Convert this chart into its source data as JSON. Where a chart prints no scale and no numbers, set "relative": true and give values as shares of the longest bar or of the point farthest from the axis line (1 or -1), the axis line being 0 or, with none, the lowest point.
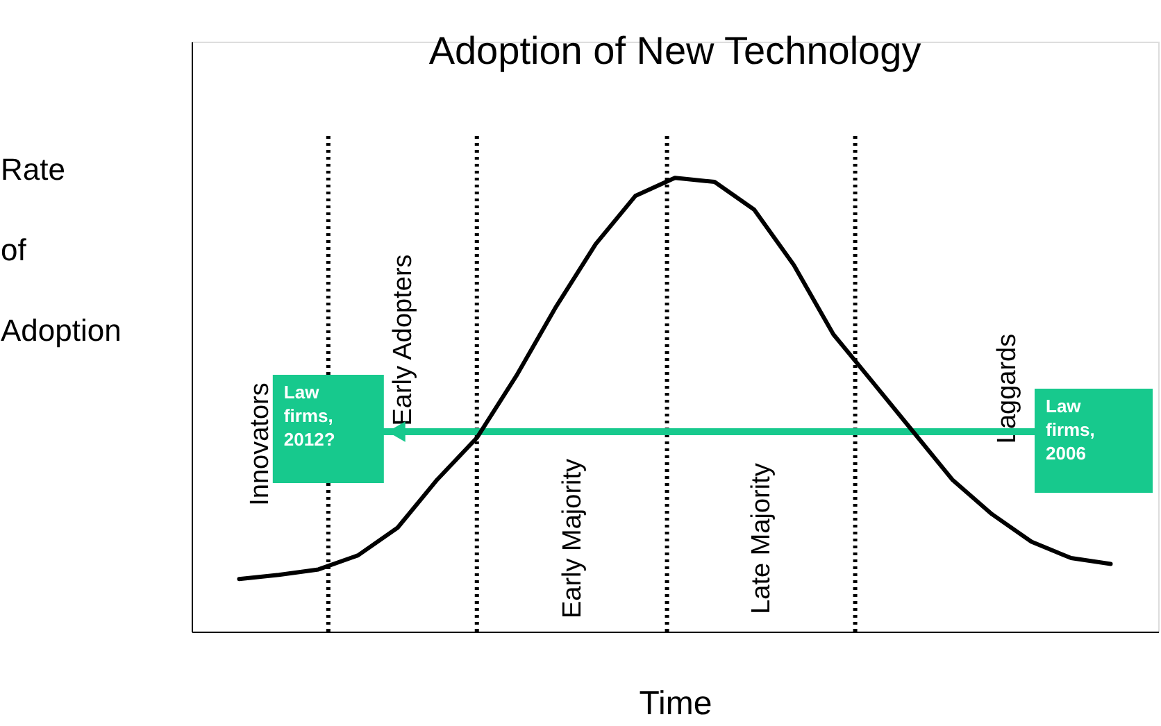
{
  "chart_data": {
    "type": "line",
    "title": "Adoption of New Technology",
    "xlabel": "Time",
    "ylabel": "Rate of Adoption",
    "relative": true,
    "categories": [
      null,
      null,
      null,
      null,
      null,
      null,
      null,
      null,
      null,
      null,
      null,
      null,
      null,
      null,
      null,
      null,
      null,
      null,
      null,
      null,
      null,
      null,
      null
    ],
    "series": [
      {
        "color": "#000000",
        "values": [
          0.116,
          0.125,
          0.137,
          0.168,
          0.229,
          0.335,
          0.427,
          0.564,
          0.716,
          0.854,
          0.96,
          1,
          0.991,
          0.93,
          0.808,
          0.655,
          0.549,
          0.442,
          0.335,
          0.259,
          0.198,
          0.162,
          0.149
        ]
      }
    ],
    "tick_labels": false,
    "grid": false,
    "marker": "none",
    "line_style": "solid",
    "annotations": [
      "Innovators",
      "Early Adopters",
      "Early Majority",
      "Late Majority",
      "Laggards",
      "Law firms, 2012?",
      "Law firms, 2006"
    ]
  }
}
